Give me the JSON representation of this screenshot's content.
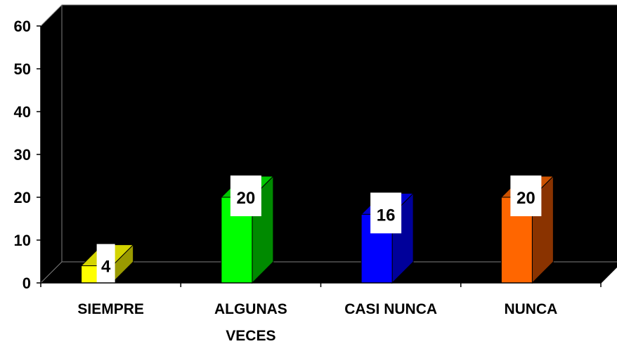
{
  "chart_data": {
    "type": "bar",
    "categories": [
      "SIEMPRE",
      "ALGUNAS VECES",
      "CASI NUNCA",
      "NUNCA"
    ],
    "category_lines": [
      [
        "SIEMPRE"
      ],
      [
        "ALGUNAS",
        "VECES"
      ],
      [
        "CASI NUNCA"
      ],
      [
        "NUNCA"
      ]
    ],
    "values": [
      4,
      20,
      16,
      20
    ],
    "data_labels": [
      "4",
      "20",
      "16",
      "20"
    ],
    "colors": [
      {
        "front": "#ffff00",
        "side": "#9a9a00",
        "top": "#d4d400"
      },
      {
        "front": "#00ff00",
        "side": "#008a00",
        "top": "#00c800"
      },
      {
        "front": "#0000ff",
        "side": "#00009a",
        "top": "#0000d0"
      },
      {
        "front": "#ff6600",
        "side": "#8a3300",
        "top": "#cc5200"
      }
    ],
    "y_ticks": [
      0,
      10,
      20,
      30,
      40,
      50,
      60
    ],
    "ylim": [
      0,
      60
    ],
    "plot_background": "#000000",
    "grid": false,
    "legend": "none",
    "three_d": true
  }
}
